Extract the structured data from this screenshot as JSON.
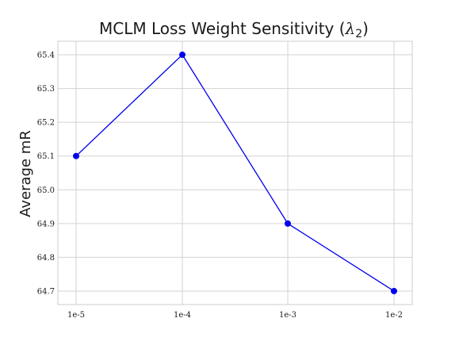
{
  "chart_data": {
    "type": "line",
    "title": "MCLM Loss Weight Sensitivity (λ2)",
    "title_parts": {
      "text": "MCLM Loss Weight Sensitivity (",
      "symbol": "λ",
      "subscript": "2",
      "close": ")"
    },
    "xlabel": "",
    "ylabel": "Average mR",
    "categories": [
      "1e-5",
      "1e-4",
      "1e-3",
      "1e-2"
    ],
    "series": [
      {
        "values": [
          65.1,
          65.4,
          64.9,
          64.7
        ],
        "color": "#0000ee",
        "marker": "circle"
      }
    ],
    "ylim": [
      64.66,
      65.44
    ],
    "yticks": [
      64.7,
      64.8,
      64.9,
      65.0,
      65.1,
      65.2,
      65.3,
      65.4
    ],
    "ytick_labels": [
      "64.7",
      "64.8",
      "64.9",
      "65.0",
      "65.1",
      "65.2",
      "65.3",
      "65.4"
    ],
    "grid": true,
    "grid_color": "#d3d3d3",
    "frame_color": "#cccccc",
    "legend": "none"
  }
}
